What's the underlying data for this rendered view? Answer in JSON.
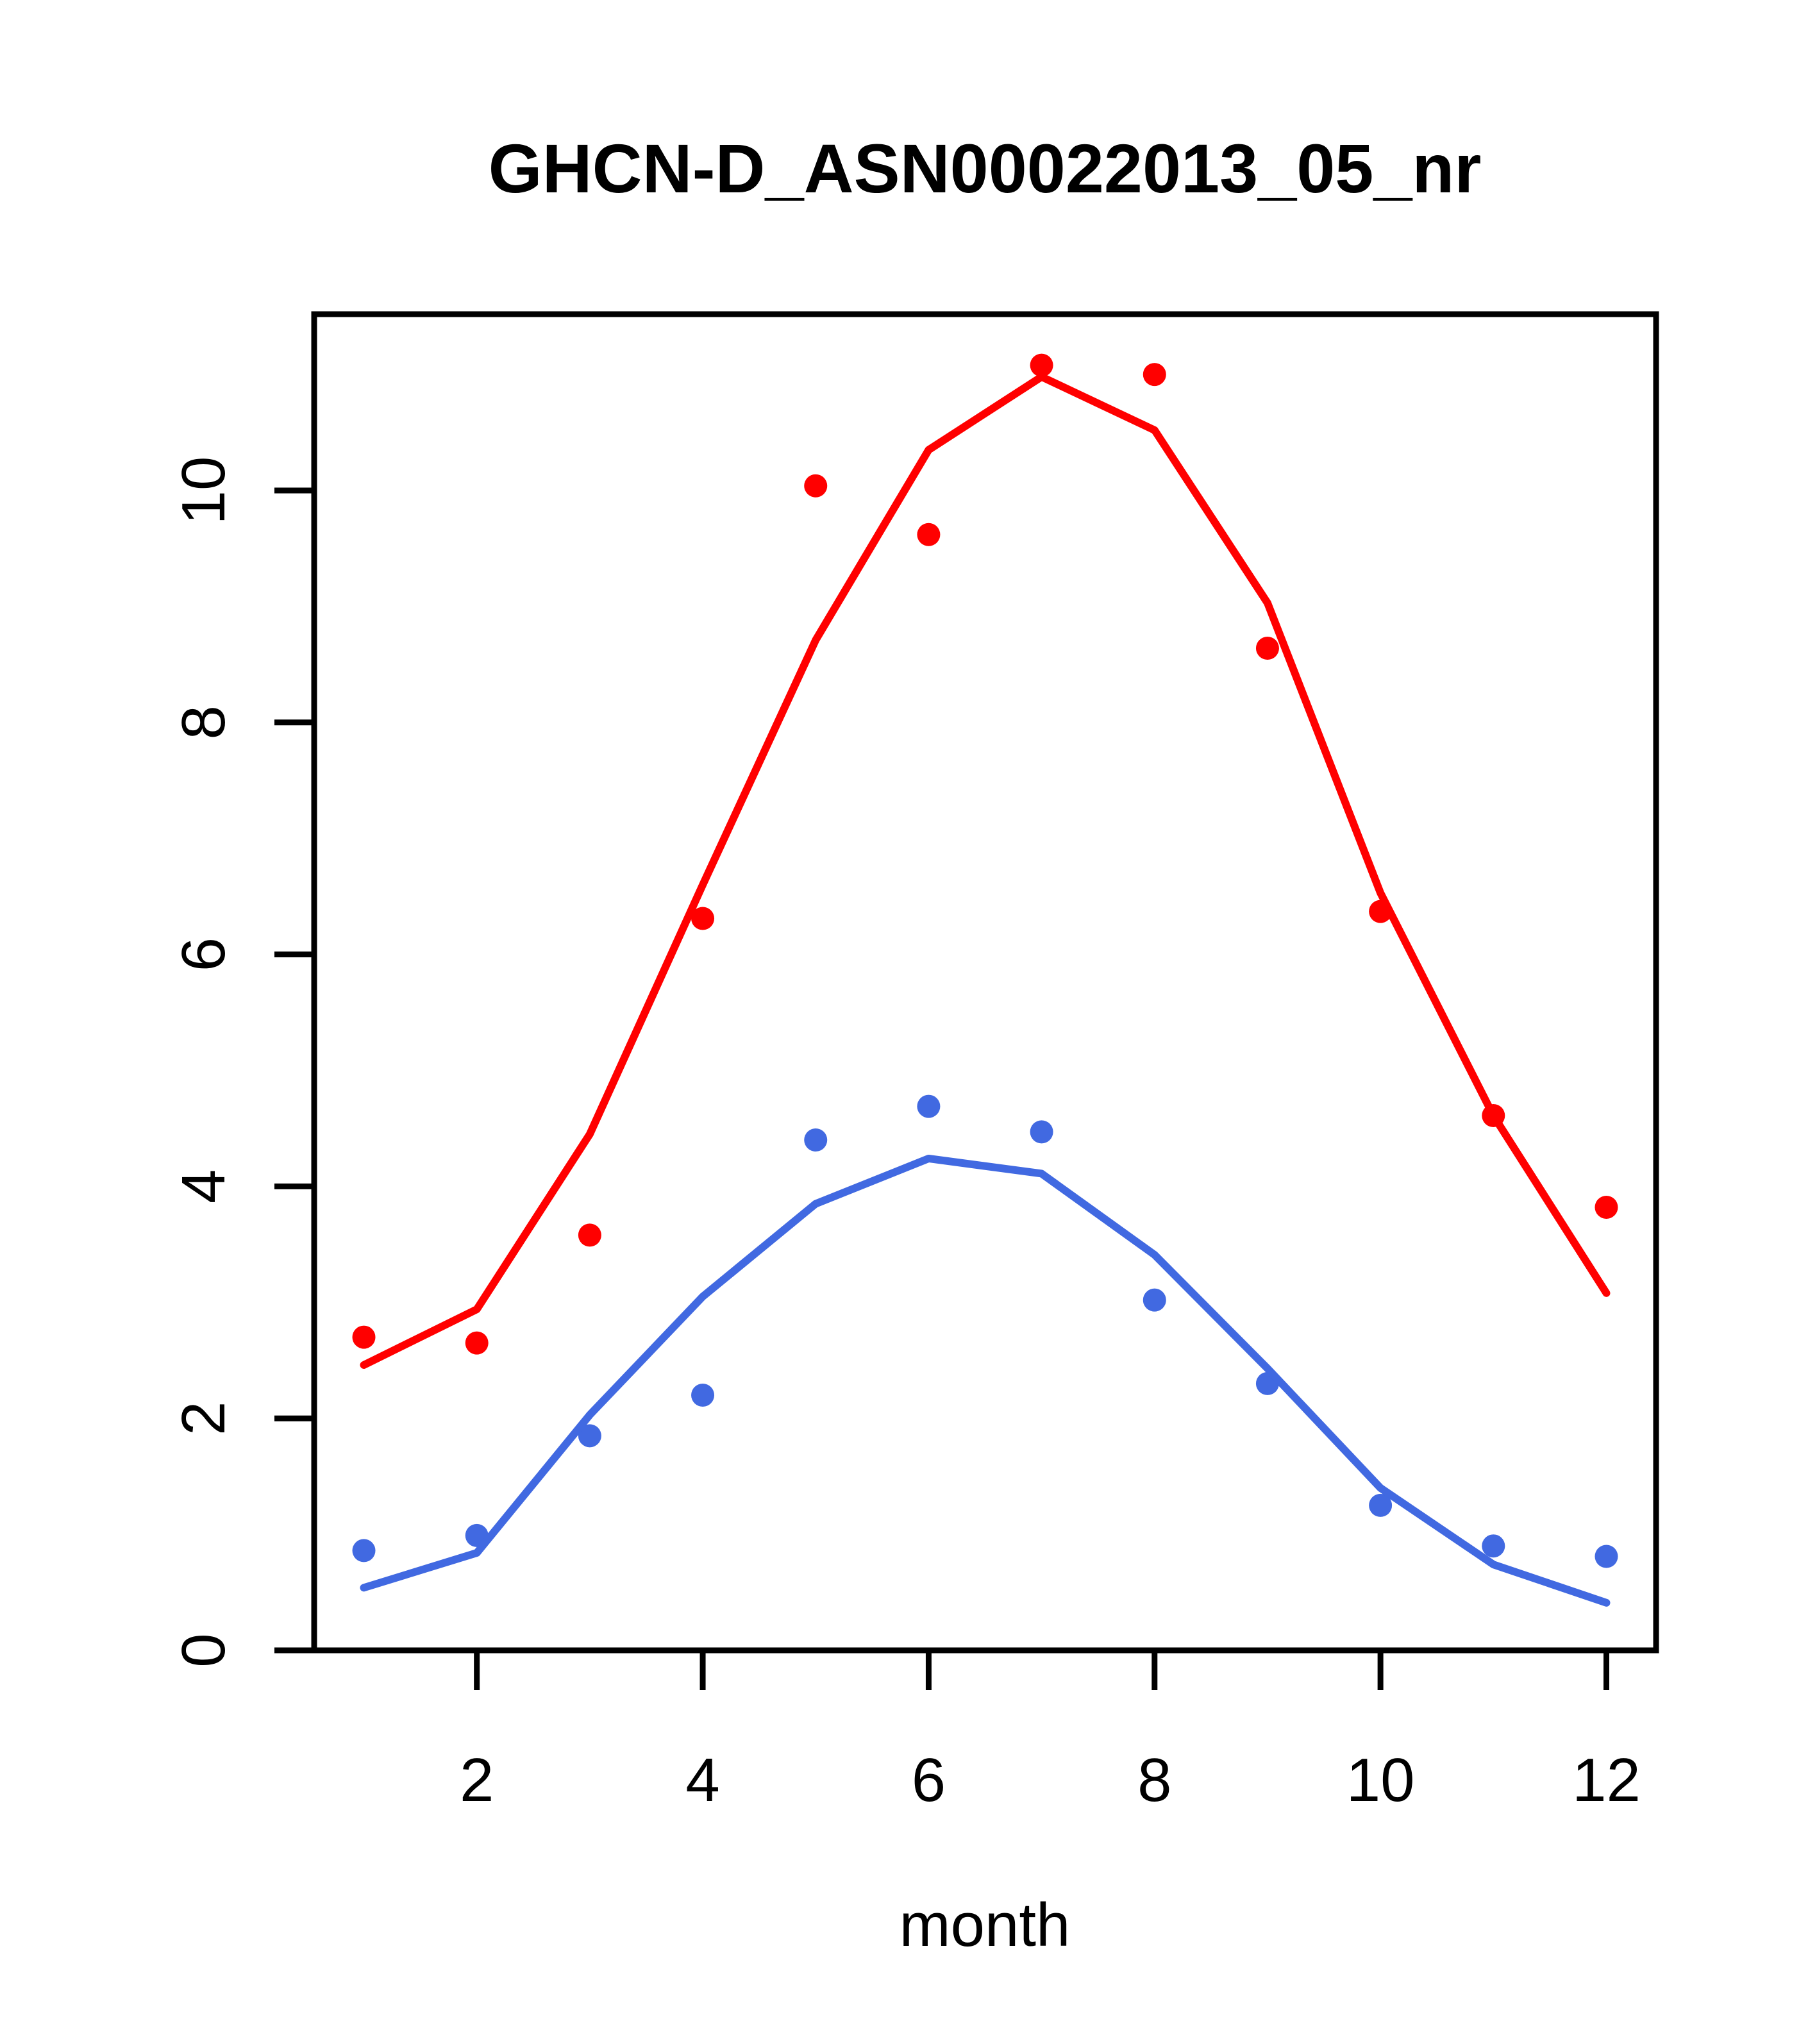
{
  "chart_data": {
    "type": "scatter",
    "title": "GHCN-D_ASN00022013_05_nr",
    "xlabel": "month",
    "ylabel": "",
    "x": [
      1,
      2,
      3,
      4,
      5,
      6,
      7,
      8,
      9,
      10,
      11,
      12
    ],
    "x_ticks": [
      2,
      4,
      6,
      8,
      10,
      12
    ],
    "y_ticks": [
      0,
      2,
      4,
      6,
      8,
      10
    ],
    "xlim": [
      0.56,
      12.44
    ],
    "ylim": [
      0,
      11.52
    ],
    "grid": false,
    "legend": "none",
    "colors": {
      "red": "#ff0000",
      "blue": "#4169e1",
      "axis": "#000000"
    },
    "series": [
      {
        "name": "red-points",
        "kind": "points",
        "color": "#ff0000",
        "values": [
          2.7,
          2.65,
          3.58,
          6.31,
          10.04,
          9.62,
          11.08,
          11.0,
          8.64,
          6.37,
          4.61,
          3.82
        ]
      },
      {
        "name": "red-smooth-line",
        "kind": "line",
        "color": "#ff0000",
        "values": [
          2.46,
          2.94,
          4.45,
          6.6,
          8.71,
          10.35,
          10.98,
          10.52,
          9.03,
          6.53,
          4.61,
          3.08
        ]
      },
      {
        "name": "blue-points",
        "kind": "points",
        "color": "#4169e1",
        "values": [
          0.86,
          0.99,
          1.85,
          2.2,
          4.4,
          4.69,
          4.47,
          3.02,
          2.3,
          1.25,
          0.9,
          0.81
        ]
      },
      {
        "name": "blue-smooth-line",
        "kind": "line",
        "color": "#4169e1",
        "values": [
          0.54,
          0.84,
          2.03,
          3.05,
          3.85,
          4.24,
          4.11,
          3.41,
          2.43,
          1.4,
          0.74,
          0.41
        ]
      }
    ]
  }
}
